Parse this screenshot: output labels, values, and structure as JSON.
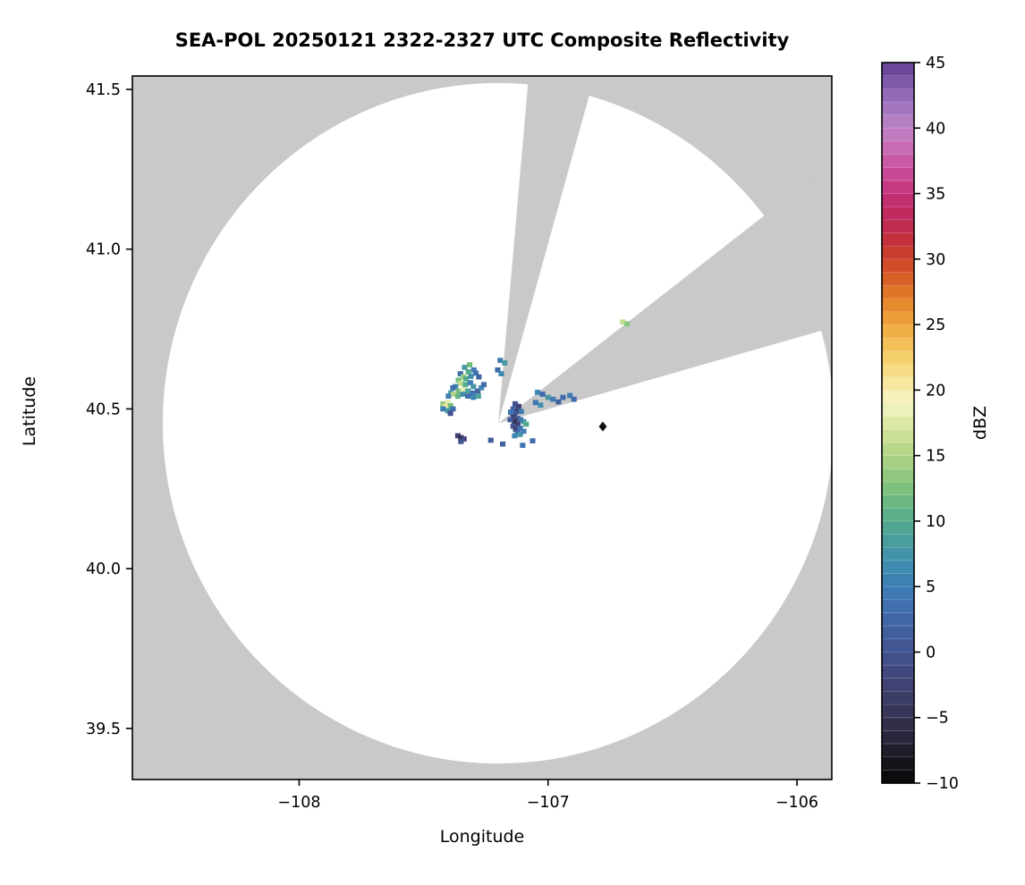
{
  "chart_data": {
    "type": "heatmap",
    "title": "SEA-POL 20250121 2322-2327 UTC Composite Reflectivity",
    "xlabel": "Longitude",
    "ylabel": "Latitude",
    "xlim": [
      -108.67,
      -105.86
    ],
    "ylim": [
      39.34,
      41.542
    ],
    "xticks": [
      {
        "value": -108,
        "label": "−108"
      },
      {
        "value": -107,
        "label": "−107"
      },
      {
        "value": -106,
        "label": "−106"
      }
    ],
    "yticks": [
      {
        "value": 39.5,
        "label": "39.5"
      },
      {
        "value": 40.0,
        "label": "40.0"
      },
      {
        "value": 40.5,
        "label": "40.5"
      },
      {
        "value": 41.0,
        "label": "41.0"
      },
      {
        "value": 41.5,
        "label": "41.5"
      }
    ],
    "grid": false,
    "outside_range_color": "#c9c9c9",
    "coverage_color": "#ffffff",
    "radar": {
      "center_lon": -107.2,
      "center_lat": 40.455,
      "range_lon_deg": 1.348,
      "range_lat_deg": 1.065
    },
    "blocked_sectors_deg": [
      {
        "start_az": 5,
        "end_az": 15.5
      },
      {
        "start_az": 52,
        "end_az": 74
      }
    ],
    "site_marker": {
      "lon": -106.78,
      "lat": 40.445,
      "shape": "diamond",
      "color": "#111111"
    },
    "colorbar": {
      "label": "dBZ",
      "min": -10,
      "max": 45,
      "segment_step": 1,
      "ticks": [
        -10,
        -5,
        0,
        5,
        10,
        15,
        20,
        25,
        30,
        35,
        40,
        45
      ],
      "tick_labels": [
        "−10",
        "−5",
        "0",
        "5",
        "10",
        "15",
        "20",
        "25",
        "30",
        "35",
        "40",
        "45"
      ]
    },
    "colormap_stops": [
      [
        -10,
        "#050505"
      ],
      [
        -8,
        "#1c1722"
      ],
      [
        -6,
        "#2e2a42"
      ],
      [
        -4,
        "#3a3a61"
      ],
      [
        -2,
        "#414478"
      ],
      [
        0,
        "#42538f"
      ],
      [
        2,
        "#4163a2"
      ],
      [
        4,
        "#3f74b3"
      ],
      [
        6,
        "#3e86b4"
      ],
      [
        8,
        "#4598a4"
      ],
      [
        10,
        "#54ab8d"
      ],
      [
        12,
        "#74bc7e"
      ],
      [
        14,
        "#9bcb7e"
      ],
      [
        16,
        "#c2db8d"
      ],
      [
        18,
        "#e4ecae"
      ],
      [
        19,
        "#f5f3c6"
      ],
      [
        20,
        "#f8ecab"
      ],
      [
        22,
        "#f7d678"
      ],
      [
        24,
        "#f3b94d"
      ],
      [
        26,
        "#ea932f"
      ],
      [
        28,
        "#dc6a27"
      ],
      [
        30,
        "#cc4327"
      ],
      [
        32,
        "#c12b45"
      ],
      [
        34,
        "#c02a66"
      ],
      [
        36,
        "#c63f8c"
      ],
      [
        38,
        "#cb62ae"
      ],
      [
        40,
        "#bd83c6"
      ],
      [
        42,
        "#9c72bd"
      ],
      [
        44,
        "#7550a2"
      ],
      [
        45,
        "#613f95"
      ]
    ],
    "cell_size_deg": [
      0.022,
      0.016
    ],
    "echo_cells": [
      [
        -107.335,
        40.63,
        8
      ],
      [
        -107.315,
        40.638,
        12
      ],
      [
        -107.298,
        40.622,
        5
      ],
      [
        -107.32,
        40.616,
        10
      ],
      [
        -107.352,
        40.61,
        3
      ],
      [
        -107.34,
        40.6,
        14
      ],
      [
        -107.33,
        40.594,
        10
      ],
      [
        -107.31,
        40.602,
        7
      ],
      [
        -107.29,
        40.612,
        4
      ],
      [
        -107.278,
        40.6,
        2
      ],
      [
        -107.36,
        40.59,
        12
      ],
      [
        -107.352,
        40.58,
        16
      ],
      [
        -107.332,
        40.576,
        10
      ],
      [
        -107.312,
        40.582,
        5
      ],
      [
        -107.3,
        40.57,
        8
      ],
      [
        -107.372,
        40.57,
        6
      ],
      [
        -107.382,
        40.566,
        3
      ],
      [
        -107.36,
        40.556,
        12
      ],
      [
        -107.342,
        40.56,
        18
      ],
      [
        -107.322,
        40.556,
        9
      ],
      [
        -107.302,
        40.55,
        4
      ],
      [
        -107.282,
        40.556,
        2
      ],
      [
        -107.268,
        40.566,
        6
      ],
      [
        -107.258,
        40.576,
        3
      ],
      [
        -107.39,
        40.55,
        8
      ],
      [
        -107.4,
        40.54,
        5
      ],
      [
        -107.38,
        40.546,
        15
      ],
      [
        -107.362,
        40.54,
        11
      ],
      [
        -107.342,
        40.546,
        7
      ],
      [
        -107.322,
        40.54,
        3
      ],
      [
        -107.3,
        40.536,
        6
      ],
      [
        -107.28,
        40.54,
        9
      ],
      [
        -107.422,
        40.516,
        14
      ],
      [
        -107.402,
        40.52,
        18
      ],
      [
        -107.412,
        40.506,
        20
      ],
      [
        -107.392,
        40.51,
        12
      ],
      [
        -107.402,
        40.494,
        8
      ],
      [
        -107.422,
        40.5,
        5
      ],
      [
        -107.382,
        40.5,
        3
      ],
      [
        -107.392,
        40.486,
        0
      ],
      [
        -107.132,
        40.516,
        0
      ],
      [
        -107.118,
        40.508,
        -2
      ],
      [
        -107.14,
        40.5,
        2
      ],
      [
        -107.12,
        40.492,
        -4
      ],
      [
        -107.134,
        40.486,
        1
      ],
      [
        -107.108,
        40.492,
        5
      ],
      [
        -107.14,
        40.476,
        -2
      ],
      [
        -107.122,
        40.47,
        0
      ],
      [
        -107.134,
        40.46,
        -5
      ],
      [
        -107.11,
        40.466,
        3
      ],
      [
        -107.122,
        40.452,
        -3
      ],
      [
        -107.14,
        40.446,
        0
      ],
      [
        -107.13,
        40.436,
        -2
      ],
      [
        -107.112,
        40.44,
        4
      ],
      [
        -107.122,
        40.426,
        2
      ],
      [
        -107.134,
        40.416,
        6
      ],
      [
        -107.112,
        40.42,
        8
      ],
      [
        -107.098,
        40.43,
        5
      ],
      [
        -107.098,
        40.46,
        7
      ],
      [
        -107.088,
        40.452,
        10
      ],
      [
        -107.15,
        40.49,
        4
      ],
      [
        -107.152,
        40.466,
        1
      ],
      [
        -107.362,
        40.416,
        -3
      ],
      [
        -107.35,
        40.41,
        -5
      ],
      [
        -107.338,
        40.406,
        -2
      ],
      [
        -107.35,
        40.398,
        0
      ],
      [
        -107.042,
        40.552,
        6
      ],
      [
        -107.022,
        40.546,
        3
      ],
      [
        -107.0,
        40.536,
        8
      ],
      [
        -106.98,
        40.53,
        5
      ],
      [
        -106.958,
        40.522,
        2
      ],
      [
        -107.05,
        40.52,
        4
      ],
      [
        -107.03,
        40.512,
        7
      ],
      [
        -106.94,
        40.536,
        3
      ],
      [
        -106.912,
        40.542,
        5
      ],
      [
        -106.896,
        40.53,
        3
      ],
      [
        -106.7,
        40.772,
        16
      ],
      [
        -106.682,
        40.766,
        13
      ],
      [
        -107.192,
        40.652,
        5
      ],
      [
        -107.174,
        40.644,
        8
      ],
      [
        -107.202,
        40.622,
        3
      ],
      [
        -107.188,
        40.61,
        6
      ],
      [
        -107.182,
        40.39,
        2
      ],
      [
        -107.102,
        40.386,
        4
      ],
      [
        -107.062,
        40.4,
        3
      ],
      [
        -107.23,
        40.402,
        1
      ]
    ]
  }
}
